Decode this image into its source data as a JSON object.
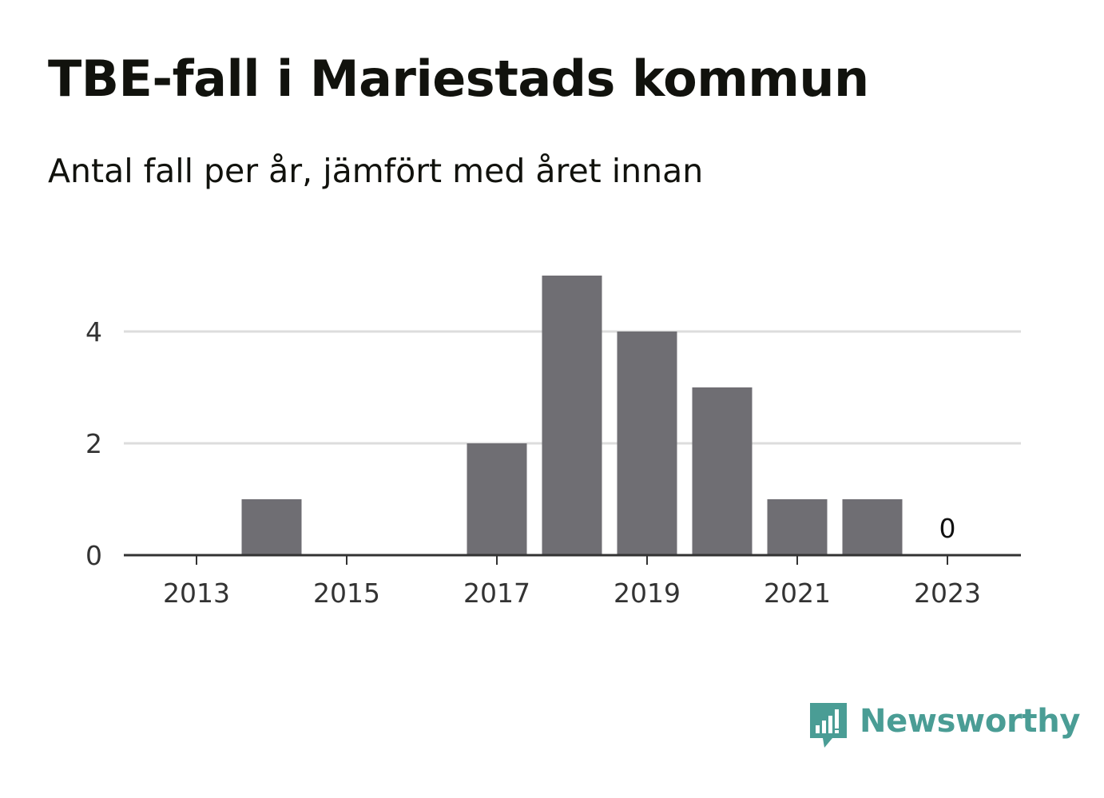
{
  "header": {
    "title": "TBE-fall i Mariestads kommun",
    "subtitle": "Antal fall per år, jämfört med året innan"
  },
  "chart_data": {
    "type": "bar",
    "categories": [
      2013,
      2014,
      2015,
      2016,
      2017,
      2018,
      2019,
      2020,
      2021,
      2022,
      2023
    ],
    "values": [
      0,
      1,
      0,
      0,
      2,
      5,
      4,
      3,
      1,
      1,
      0
    ],
    "x_ticks": [
      "2013",
      "2015",
      "2017",
      "2019",
      "2021",
      "2023"
    ],
    "y_ticks": [
      0,
      2,
      4
    ],
    "ylim": [
      0,
      5
    ],
    "grid": true,
    "annotations": [
      {
        "x": 2023,
        "label": "0"
      }
    ],
    "colors": {
      "bar": "#6f6e73",
      "grid": "#dddddd",
      "axis": "#333333"
    }
  },
  "branding": {
    "logo_text": "Newsworthy",
    "icon": "newsworthy-chart-bubble-icon",
    "color": "#4a9d95"
  }
}
